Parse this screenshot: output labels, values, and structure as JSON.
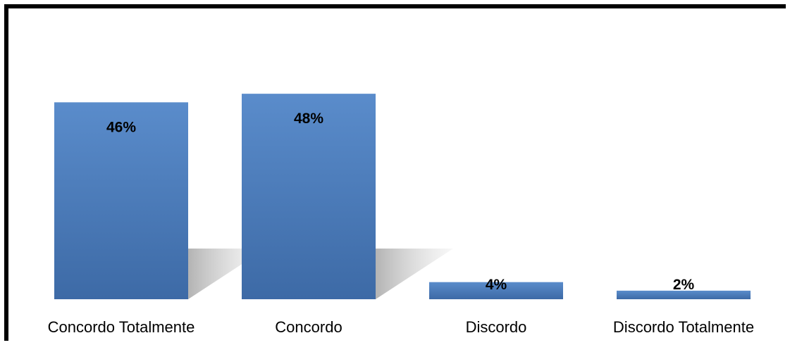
{
  "chart_data": {
    "type": "bar",
    "categories": [
      "Concordo Totalmente",
      "Concordo",
      "Discordo",
      "Discordo Totalmente"
    ],
    "values": [
      46,
      48,
      4,
      2
    ],
    "data_labels": [
      "46%",
      "48%",
      "4%",
      "2%"
    ],
    "title": "",
    "xlabel": "",
    "ylabel": "",
    "ylim": [
      0,
      50
    ],
    "grid": false,
    "legend": "none",
    "bar_color": "#4a7bb7",
    "bar_color_light": "#5a8ccb",
    "bar_color_dark": "#3d6aa6"
  }
}
